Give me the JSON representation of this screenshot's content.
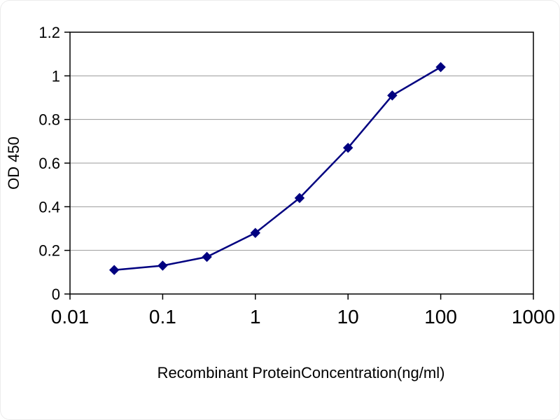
{
  "chart_data": {
    "type": "line",
    "x_scale": "log",
    "x": [
      0.03,
      0.1,
      0.3,
      1,
      3,
      10,
      30,
      100
    ],
    "y": [
      0.11,
      0.13,
      0.17,
      0.28,
      0.44,
      0.67,
      0.91,
      1.04
    ],
    "xlabel": "Recombinant ProteinConcentration(ng/ml)",
    "ylabel": "OD 450",
    "xlim": [
      0.01,
      1000
    ],
    "ylim": [
      0,
      1.2
    ],
    "x_ticks": [
      0.01,
      0.1,
      1,
      10,
      100,
      1000
    ],
    "x_tick_labels": [
      "0.01",
      "0.1",
      "1",
      "10",
      "100",
      "1000"
    ],
    "y_ticks": [
      0,
      0.2,
      0.4,
      0.6,
      0.8,
      1,
      1.2
    ],
    "y_tick_labels": [
      "0",
      "0.2",
      "0.4",
      "0.6",
      "0.8",
      "1",
      "1.2"
    ],
    "grid": "horizontal",
    "legend": "none",
    "marker": "diamond",
    "line_color": "#000080",
    "marker_color": "#000080",
    "gridline_color": "#9a9a9a",
    "axis_color": "#000000",
    "background_color": "#ffffff"
  }
}
